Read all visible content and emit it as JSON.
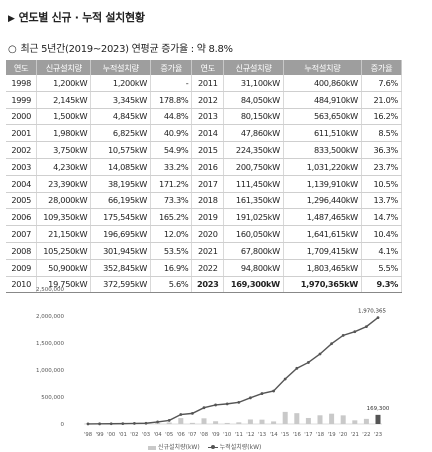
{
  "header": {
    "title_glyph": "▶",
    "title": "연도별 신규 · 누적 설치현황",
    "subtitle_glyph": "○",
    "subtitle": "최근 5년간(2019~2023) 연평균 증가율 : 약 8.8%"
  },
  "table": {
    "columns": [
      "연도",
      "신규설치량",
      "누적설치량",
      "증가율",
      "연도",
      "신규설치량",
      "누적설치량",
      "증가율"
    ],
    "left_rows": [
      [
        "1998",
        "1,200kW",
        "1,200kW",
        "-"
      ],
      [
        "1999",
        "2,145kW",
        "3,345kW",
        "178.8%"
      ],
      [
        "2000",
        "1,500kW",
        "4,845kW",
        "44.8%"
      ],
      [
        "2001",
        "1,980kW",
        "6,825kW",
        "40.9%"
      ],
      [
        "2002",
        "3,750kW",
        "10,575kW",
        "54.9%"
      ],
      [
        "2003",
        "4,230kW",
        "14,085kW",
        "33.2%"
      ],
      [
        "2004",
        "23,390kW",
        "38,195kW",
        "171.2%"
      ],
      [
        "2005",
        "28,000kW",
        "66,195kW",
        "73.3%"
      ],
      [
        "2006",
        "109,350kW",
        "175,545kW",
        "165.2%"
      ],
      [
        "2007",
        "21,150kW",
        "196,695kW",
        "12.0%"
      ],
      [
        "2008",
        "105,250kW",
        "301,945kW",
        "53.5%"
      ],
      [
        "2009",
        "50,900kW",
        "352,845kW",
        "16.9%"
      ],
      [
        "2010",
        "19,750kW",
        "372,595kW",
        "5.6%"
      ]
    ],
    "right_rows": [
      [
        "2011",
        "31,100kW",
        "400,860kW",
        "7.6%"
      ],
      [
        "2012",
        "84,050kW",
        "484,910kW",
        "21.0%"
      ],
      [
        "2013",
        "80,150kW",
        "563,650kW",
        "16.2%"
      ],
      [
        "2014",
        "47,860kW",
        "611,510kW",
        "8.5%"
      ],
      [
        "2015",
        "224,350kW",
        "833,500kW",
        "36.3%"
      ],
      [
        "2016",
        "200,750kW",
        "1,031,220kW",
        "23.7%"
      ],
      [
        "2017",
        "111,450kW",
        "1,139,910kW",
        "10.5%"
      ],
      [
        "2018",
        "161,350kW",
        "1,296,440kW",
        "13.7%"
      ],
      [
        "2019",
        "191,025kW",
        "1,487,465kW",
        "14.7%"
      ],
      [
        "2020",
        "160,050kW",
        "1,641,615kW",
        "10.4%"
      ],
      [
        "2021",
        "67,800kW",
        "1,709,415kW",
        "4.1%"
      ],
      [
        "2022",
        "94,800kW",
        "1,803,465kW",
        "5.5%"
      ],
      [
        "2023",
        "169,300kW",
        "1,970,365kW",
        "9.3%"
      ]
    ]
  },
  "chart_data": {
    "type": "line",
    "x": [
      "'98",
      "'99",
      "'00",
      "'01",
      "'02",
      "'03",
      "'04",
      "'05",
      "'06",
      "'07",
      "'08",
      "'09",
      "'10",
      "'11",
      "'12",
      "'13",
      "'14",
      "'15",
      "'16",
      "'17",
      "'18",
      "'19",
      "'20",
      "'21",
      "'22",
      "'23"
    ],
    "series": [
      {
        "name": "신규설치량(kW)",
        "type": "bar",
        "values": [
          1200,
          2145,
          1500,
          1980,
          3750,
          4230,
          23390,
          28000,
          109350,
          21150,
          105250,
          50900,
          19750,
          31100,
          84050,
          80150,
          47860,
          224350,
          200750,
          111450,
          161350,
          191025,
          160050,
          67800,
          94800,
          169300
        ]
      },
      {
        "name": "누적설치량(kW)",
        "type": "line",
        "values": [
          1200,
          3345,
          4845,
          6825,
          10575,
          14085,
          38195,
          66195,
          175545,
          196695,
          301945,
          352845,
          372595,
          400860,
          484910,
          563650,
          611510,
          833500,
          1031220,
          1139910,
          1296440,
          1487465,
          1641615,
          1709415,
          1803465,
          1970365
        ]
      }
    ],
    "y_ticks": [
      "2,500,000",
      "2,000,000",
      "1,500,000",
      "1,000,000",
      "500,000",
      "0"
    ],
    "ylim": [
      0,
      2500000
    ],
    "annotations": [
      "1,970,365",
      "169,300"
    ],
    "grid": false,
    "legend": "bottom"
  },
  "colors": {
    "header_bg": "#9e9e9e",
    "line": "#555555",
    "bar": "#c9c9c9",
    "bar_highlight": "#555555"
  }
}
